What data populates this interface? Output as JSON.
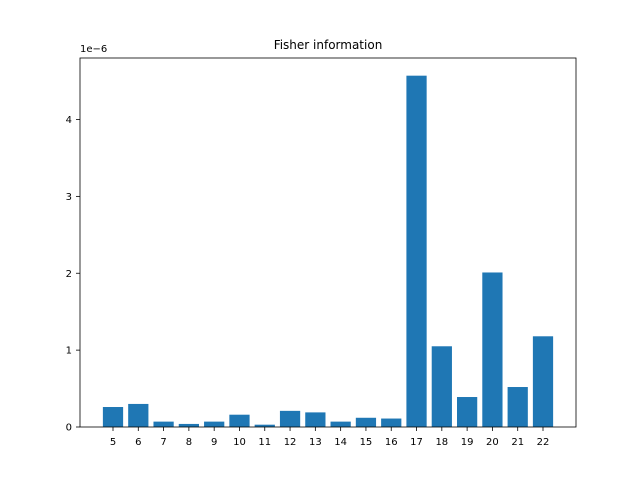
{
  "chart_data": {
    "type": "bar",
    "title": "Fisher information",
    "xlabel": "",
    "ylabel": "",
    "y_offset_label": "1e−6",
    "categories": [
      "5",
      "6",
      "7",
      "8",
      "9",
      "10",
      "11",
      "12",
      "13",
      "14",
      "15",
      "16",
      "17",
      "18",
      "19",
      "20",
      "21",
      "22"
    ],
    "values": [
      0.26,
      0.3,
      0.07,
      0.04,
      0.07,
      0.16,
      0.03,
      0.21,
      0.19,
      0.07,
      0.12,
      0.11,
      4.57,
      1.05,
      0.39,
      2.01,
      0.52,
      1.18
    ],
    "value_scale": "1e-6",
    "ylim": [
      0,
      4.8
    ],
    "yticks": [
      "0",
      "1",
      "2",
      "3",
      "4"
    ],
    "bar_color": "#1f77b4",
    "grid": false,
    "legend": "none"
  }
}
